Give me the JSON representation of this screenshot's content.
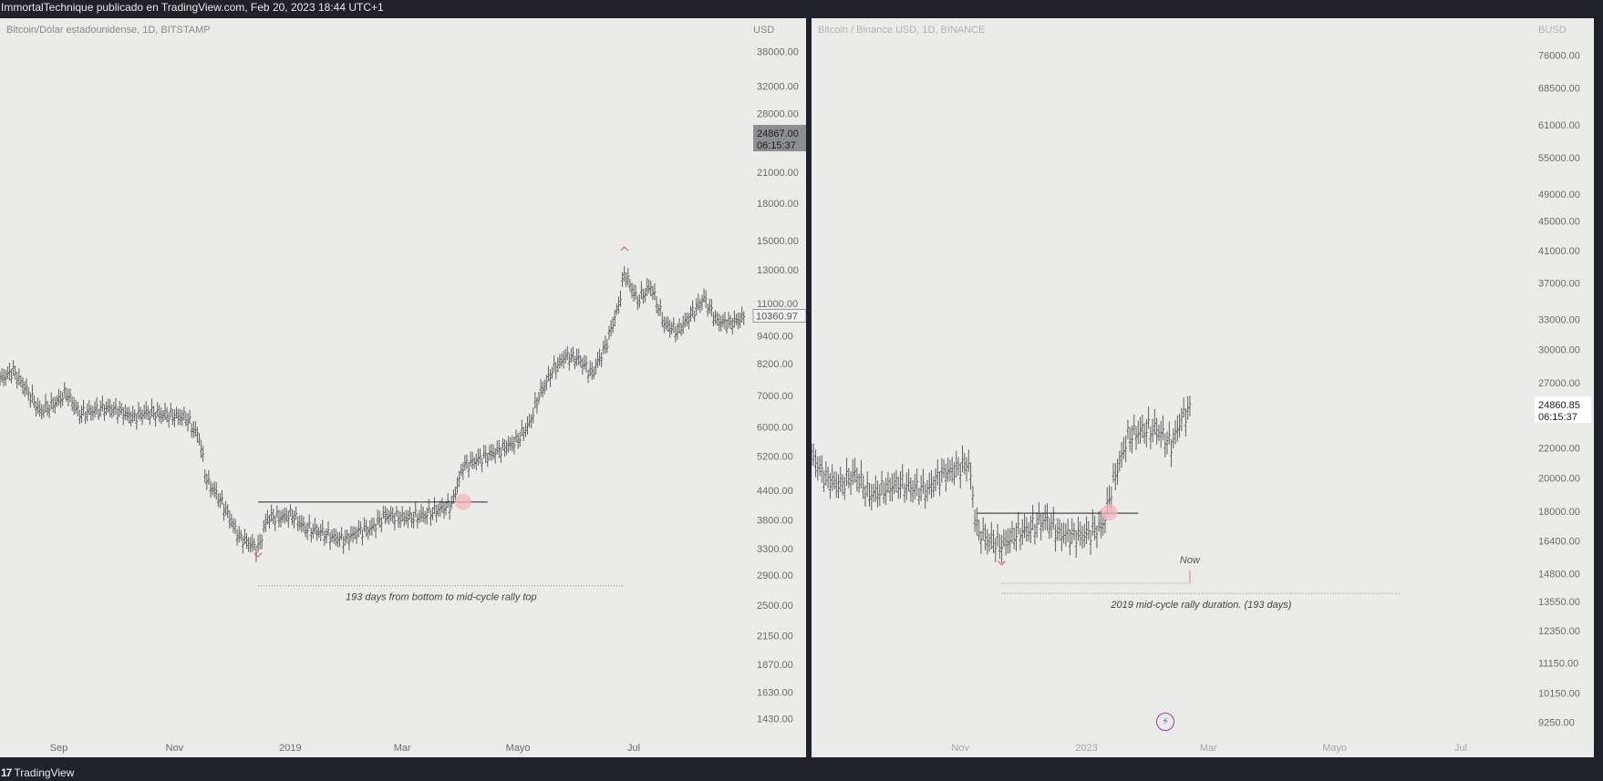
{
  "header": {
    "publisher_line": "ImmortalTechnique publicado en TradingView.com, Feb 20, 2023 18:44 UTC+1"
  },
  "footer": {
    "brand_name": "TradingView",
    "brand_mark": "17"
  },
  "colors": {
    "panel_bg": "#ebebe9",
    "frame_bg": "#1f222a",
    "candles": "#5f5f5f",
    "marker": "#e07a7a",
    "highlight": "#f3b6bd",
    "flash": "#9b3fb0"
  },
  "icons": {
    "flash": "lightning-icon"
  },
  "chart_data": [
    {
      "type": "line",
      "title": "Bitcoin/Dólar estadounidense, 1D, BITSTAMP",
      "currency": "USD",
      "scale": "log",
      "ylim": [
        1300,
        42000
      ],
      "x_range": [
        "2018-08-01",
        "2019-08-31"
      ],
      "x_ticks": [
        {
          "label": "Sep",
          "date": "2018-09-01"
        },
        {
          "label": "Nov",
          "date": "2018-11-01"
        },
        {
          "label": "2019",
          "date": "2019-01-01"
        },
        {
          "label": "Mar",
          "date": "2019-03-01"
        },
        {
          "label": "Mayo",
          "date": "2019-05-01"
        },
        {
          "label": "Jul",
          "date": "2019-07-01"
        }
      ],
      "y_ticks": [
        38000,
        32000,
        28000,
        21000,
        18000,
        15000,
        13000,
        11000,
        9400,
        8200,
        7000,
        6000,
        5200,
        4400,
        3800,
        3300,
        2900,
        2500,
        2150,
        1870,
        1630,
        1430
      ],
      "y_tick_labels": [
        "38000.00",
        "32000.00",
        "28000.00",
        "21000.00",
        "18000.00",
        "15000.00",
        "13000.00",
        "11000.00",
        "9400.00",
        "8200.00",
        "7000.00",
        "6000.00",
        "5200.00",
        "4400.00",
        "3800.00",
        "3300.00",
        "2900.00",
        "2500.00",
        "2150.00",
        "1870.00",
        "1630.00",
        "1430.00"
      ],
      "price_label": {
        "price": "24867.00",
        "countdown": "06:15:37",
        "value": 24867
      },
      "last_price_label": {
        "text": "10360.97",
        "value": 10360.97
      },
      "series": [
        {
          "x": [
            "2018-08-01",
            "2018-08-08",
            "2018-08-15",
            "2018-08-22",
            "2018-08-29",
            "2018-09-05",
            "2018-09-12",
            "2018-09-19",
            "2018-09-26",
            "2018-10-03",
            "2018-10-10",
            "2018-10-17",
            "2018-10-24",
            "2018-10-31",
            "2018-11-07",
            "2018-11-14",
            "2018-11-18",
            "2018-11-22",
            "2018-11-28",
            "2018-12-05",
            "2018-12-10",
            "2018-12-15",
            "2018-12-20",
            "2018-12-26",
            "2019-01-02",
            "2019-01-09",
            "2019-01-16",
            "2019-01-23",
            "2019-01-30",
            "2019-02-06",
            "2019-02-13",
            "2019-02-20",
            "2019-02-27",
            "2019-03-06",
            "2019-03-13",
            "2019-03-20",
            "2019-03-27",
            "2019-04-02",
            "2019-04-09",
            "2019-04-16",
            "2019-04-23",
            "2019-04-30",
            "2019-05-07",
            "2019-05-12",
            "2019-05-19",
            "2019-05-26",
            "2019-06-02",
            "2019-06-09",
            "2019-06-16",
            "2019-06-23",
            "2019-06-26",
            "2019-07-03",
            "2019-07-10",
            "2019-07-17",
            "2019-07-24",
            "2019-07-31",
            "2019-08-07",
            "2019-08-14",
            "2019-08-21",
            "2019-08-28"
          ],
          "values": [
            7600,
            7900,
            7200,
            6500,
            6700,
            7100,
            6400,
            6500,
            6600,
            6500,
            6300,
            6450,
            6400,
            6350,
            6300,
            5700,
            4600,
            4400,
            4000,
            3500,
            3400,
            3300,
            3850,
            3850,
            3900,
            3650,
            3600,
            3500,
            3450,
            3600,
            3650,
            3900,
            3850,
            3850,
            3900,
            4000,
            4100,
            4950,
            5100,
            5250,
            5400,
            5600,
            6100,
            7000,
            7900,
            8500,
            8400,
            7800,
            8900,
            10900,
            12800,
            11200,
            12000,
            10000,
            9600,
            10400,
            11300,
            10100,
            10000,
            10300
          ]
        }
      ],
      "horizontal_line": {
        "value": 4150,
        "from": "2018-12-15",
        "to": "2019-04-15"
      },
      "highlight_point": {
        "date": "2019-04-02",
        "value": 4150
      },
      "bottom_marker": {
        "date": "2018-12-15",
        "value": 3200
      },
      "top_marker": {
        "date": "2019-06-26",
        "value": 14400
      },
      "annotation": {
        "text": "193 days from bottom to mid-cycle rally top",
        "from": "2018-12-15",
        "to": "2019-06-26",
        "value": 2750
      }
    },
    {
      "type": "line",
      "title": "Bitcoin / Binance USD, 1D, BINANCE",
      "currency": "BUSD",
      "scale": "log",
      "ylim": [
        8800,
        82000
      ],
      "x_range": [
        "2022-08-21",
        "2023-07-31"
      ],
      "x_ticks": [
        {
          "label": "Nov",
          "date": "2022-11-01"
        },
        {
          "label": "2023",
          "date": "2023-01-01"
        },
        {
          "label": "Mar",
          "date": "2023-03-01"
        },
        {
          "label": "Mayo",
          "date": "2023-05-01"
        },
        {
          "label": "Jul",
          "date": "2023-07-01"
        }
      ],
      "y_ticks": [
        76000,
        68500,
        61000,
        55000,
        49000,
        45000,
        41000,
        37000,
        33000,
        30000,
        27000,
        22000,
        20000,
        18000,
        16400,
        14800,
        13550,
        12350,
        11150,
        10150,
        9250
      ],
      "y_tick_labels": [
        "76000.00",
        "68500.00",
        "61000.00",
        "55000.00",
        "49000.00",
        "45000.00",
        "41000.00",
        "37000.00",
        "33000.00",
        "30000.00",
        "27000.00",
        "22000.00",
        "20000.00",
        "18000.00",
        "16400.00",
        "14800.00",
        "13550.00",
        "12350.00",
        "11150.00",
        "10150.00",
        "9250.00"
      ],
      "price_label": {
        "price": "24860.85",
        "countdown": "06:15:37",
        "value": 24860
      },
      "series": [
        {
          "x": [
            "2022-08-21",
            "2022-08-28",
            "2022-09-04",
            "2022-09-11",
            "2022-09-18",
            "2022-09-25",
            "2022-10-02",
            "2022-10-09",
            "2022-10-16",
            "2022-10-23",
            "2022-10-30",
            "2022-11-05",
            "2022-11-09",
            "2022-11-14",
            "2022-11-21",
            "2022-11-28",
            "2022-12-05",
            "2022-12-12",
            "2022-12-19",
            "2022-12-26",
            "2023-01-02",
            "2023-01-09",
            "2023-01-14",
            "2023-01-21",
            "2023-01-28",
            "2023-02-04",
            "2023-02-11",
            "2023-02-16",
            "2023-02-20"
          ],
          "values": [
            21500,
            20000,
            19600,
            20300,
            19000,
            19300,
            19700,
            19400,
            19300,
            20300,
            20600,
            21000,
            17000,
            16500,
            16200,
            16800,
            17100,
            17600,
            16800,
            16700,
            16800,
            17300,
            19800,
            22800,
            23300,
            23400,
            22200,
            24200,
            24860
          ]
        }
      ],
      "horizontal_line": {
        "value": 17900,
        "from": "2022-11-09",
        "to": "2023-01-26"
      },
      "highlight_point": {
        "date": "2023-01-12",
        "value": 17950
      },
      "bottom_marker": {
        "date": "2022-11-21",
        "value": 15300
      },
      "now_label": {
        "text": "Now",
        "date": "2023-02-20"
      },
      "elapsed_line": {
        "from": "2022-11-21",
        "to": "2023-02-20",
        "value": 14350
      },
      "annotation": {
        "text": "2019 mid-cycle rally duration. (193 days)",
        "from": "2022-11-21",
        "to": "2023-06-02",
        "value": 13900
      }
    }
  ]
}
